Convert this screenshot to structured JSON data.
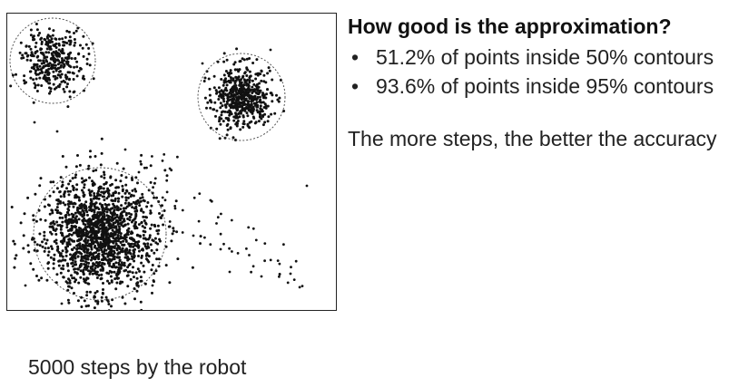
{
  "slide": {
    "heading": "How good is the approximation?",
    "bullets": [
      "51.2% of points inside 50% contours",
      "93.6% of points inside 95% contours"
    ],
    "conclusion": "The more steps, the better the accuracy",
    "caption": "5000 steps by the robot"
  },
  "diagram": {
    "point_color": "#111111",
    "contour_color": "#444444",
    "clusters": [
      {
        "id": "top-left",
        "count": 360
      },
      {
        "id": "top-right",
        "count": 560
      },
      {
        "id": "bottom-left",
        "count": 1600
      }
    ],
    "stray_points": 60
  }
}
